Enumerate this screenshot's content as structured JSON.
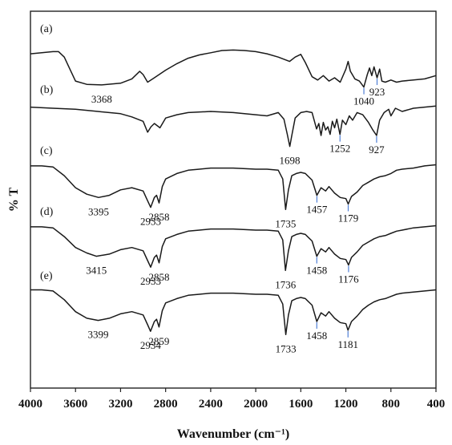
{
  "chart_data": {
    "type": "line",
    "xlabel": "Wavenumber (cm⁻¹)",
    "ylabel": "% T",
    "xlim": [
      4000,
      400
    ],
    "x_reversed": true,
    "xticks": [
      "4000",
      "3600",
      "3200",
      "2800",
      "2400",
      "2000",
      "1600",
      "1200",
      "800",
      "400"
    ],
    "grid": false,
    "line_color": "#1a1a1a",
    "marker_color": "#4f7fd6",
    "series": [
      {
        "label": "(a)",
        "points": [
          [
            4000,
            0.34
          ],
          [
            3900,
            0.32
          ],
          [
            3800,
            0.3
          ],
          [
            3750,
            0.3
          ],
          [
            3700,
            0.4
          ],
          [
            3650,
            0.62
          ],
          [
            3600,
            0.84
          ],
          [
            3500,
            0.9
          ],
          [
            3368,
            0.91
          ],
          [
            3200,
            0.88
          ],
          [
            3100,
            0.8
          ],
          [
            3030,
            0.66
          ],
          [
            3000,
            0.72
          ],
          [
            2960,
            0.86
          ],
          [
            2900,
            0.78
          ],
          [
            2800,
            0.64
          ],
          [
            2700,
            0.52
          ],
          [
            2600,
            0.42
          ],
          [
            2500,
            0.36
          ],
          [
            2400,
            0.32
          ],
          [
            2300,
            0.28
          ],
          [
            2200,
            0.27
          ],
          [
            2100,
            0.28
          ],
          [
            2000,
            0.3
          ],
          [
            1900,
            0.34
          ],
          [
            1800,
            0.4
          ],
          [
            1700,
            0.48
          ],
          [
            1650,
            0.4
          ],
          [
            1600,
            0.35
          ],
          [
            1560,
            0.5
          ],
          [
            1500,
            0.76
          ],
          [
            1450,
            0.82
          ],
          [
            1400,
            0.74
          ],
          [
            1350,
            0.84
          ],
          [
            1300,
            0.78
          ],
          [
            1250,
            0.86
          ],
          [
            1200,
            0.62
          ],
          [
            1180,
            0.48
          ],
          [
            1160,
            0.66
          ],
          [
            1120,
            0.8
          ],
          [
            1080,
            0.84
          ],
          [
            1040,
            0.95
          ],
          [
            1010,
            0.72
          ],
          [
            990,
            0.6
          ],
          [
            970,
            0.74
          ],
          [
            950,
            0.58
          ],
          [
            923,
            0.78
          ],
          [
            900,
            0.62
          ],
          [
            880,
            0.84
          ],
          [
            850,
            0.86
          ],
          [
            800,
            0.82
          ],
          [
            750,
            0.86
          ],
          [
            700,
            0.84
          ],
          [
            600,
            0.82
          ],
          [
            500,
            0.8
          ],
          [
            400,
            0.74
          ]
        ],
        "peaks": [
          {
            "x": 3368,
            "label": "3368",
            "marker": false
          },
          {
            "x": 1040,
            "label": "1040",
            "marker": true
          },
          {
            "x": 923,
            "label": "923",
            "marker": true
          }
        ]
      },
      {
        "label": "(b)",
        "points": [
          [
            4000,
            0.2
          ],
          [
            3800,
            0.22
          ],
          [
            3600,
            0.24
          ],
          [
            3400,
            0.28
          ],
          [
            3200,
            0.32
          ],
          [
            3100,
            0.38
          ],
          [
            3000,
            0.46
          ],
          [
            2960,
            0.66
          ],
          [
            2930,
            0.56
          ],
          [
            2900,
            0.5
          ],
          [
            2850,
            0.58
          ],
          [
            2800,
            0.4
          ],
          [
            2700,
            0.34
          ],
          [
            2600,
            0.3
          ],
          [
            2400,
            0.28
          ],
          [
            2200,
            0.3
          ],
          [
            2000,
            0.34
          ],
          [
            1900,
            0.36
          ],
          [
            1800,
            0.3
          ],
          [
            1750,
            0.42
          ],
          [
            1720,
            0.7
          ],
          [
            1698,
            0.92
          ],
          [
            1680,
            0.72
          ],
          [
            1650,
            0.4
          ],
          [
            1600,
            0.3
          ],
          [
            1550,
            0.28
          ],
          [
            1500,
            0.3
          ],
          [
            1460,
            0.6
          ],
          [
            1440,
            0.5
          ],
          [
            1420,
            0.72
          ],
          [
            1400,
            0.48
          ],
          [
            1380,
            0.62
          ],
          [
            1360,
            0.56
          ],
          [
            1340,
            0.7
          ],
          [
            1320,
            0.46
          ],
          [
            1300,
            0.58
          ],
          [
            1280,
            0.42
          ],
          [
            1252,
            0.7
          ],
          [
            1230,
            0.44
          ],
          [
            1200,
            0.52
          ],
          [
            1170,
            0.36
          ],
          [
            1140,
            0.44
          ],
          [
            1100,
            0.3
          ],
          [
            1050,
            0.34
          ],
          [
            1000,
            0.48
          ],
          [
            960,
            0.62
          ],
          [
            927,
            0.72
          ],
          [
            900,
            0.44
          ],
          [
            860,
            0.3
          ],
          [
            820,
            0.24
          ],
          [
            800,
            0.36
          ],
          [
            760,
            0.22
          ],
          [
            700,
            0.28
          ],
          [
            600,
            0.22
          ],
          [
            500,
            0.2
          ],
          [
            400,
            0.18
          ]
        ],
        "peaks": [
          {
            "x": 1698,
            "label": "1698",
            "marker": false
          },
          {
            "x": 1252,
            "label": "1252",
            "marker": true
          },
          {
            "x": 927,
            "label": "927",
            "marker": true
          }
        ]
      },
      {
        "label": "(c)",
        "points": [
          [
            4000,
            0.16
          ],
          [
            3900,
            0.16
          ],
          [
            3800,
            0.18
          ],
          [
            3700,
            0.34
          ],
          [
            3600,
            0.56
          ],
          [
            3500,
            0.68
          ],
          [
            3395,
            0.74
          ],
          [
            3300,
            0.7
          ],
          [
            3200,
            0.6
          ],
          [
            3100,
            0.56
          ],
          [
            3000,
            0.62
          ],
          [
            2960,
            0.8
          ],
          [
            2933,
            0.92
          ],
          [
            2900,
            0.74
          ],
          [
            2880,
            0.7
          ],
          [
            2858,
            0.84
          ],
          [
            2830,
            0.54
          ],
          [
            2800,
            0.4
          ],
          [
            2700,
            0.3
          ],
          [
            2600,
            0.24
          ],
          [
            2500,
            0.22
          ],
          [
            2400,
            0.2
          ],
          [
            2200,
            0.2
          ],
          [
            2000,
            0.22
          ],
          [
            1900,
            0.22
          ],
          [
            1800,
            0.24
          ],
          [
            1760,
            0.4
          ],
          [
            1735,
            0.96
          ],
          [
            1710,
            0.6
          ],
          [
            1680,
            0.34
          ],
          [
            1640,
            0.3
          ],
          [
            1600,
            0.28
          ],
          [
            1560,
            0.3
          ],
          [
            1500,
            0.42
          ],
          [
            1457,
            0.7
          ],
          [
            1420,
            0.56
          ],
          [
            1380,
            0.62
          ],
          [
            1350,
            0.54
          ],
          [
            1300,
            0.66
          ],
          [
            1250,
            0.74
          ],
          [
            1200,
            0.76
          ],
          [
            1179,
            0.86
          ],
          [
            1150,
            0.72
          ],
          [
            1100,
            0.64
          ],
          [
            1050,
            0.52
          ],
          [
            1000,
            0.46
          ],
          [
            950,
            0.4
          ],
          [
            900,
            0.36
          ],
          [
            850,
            0.34
          ],
          [
            800,
            0.3
          ],
          [
            750,
            0.24
          ],
          [
            700,
            0.22
          ],
          [
            600,
            0.2
          ],
          [
            500,
            0.16
          ],
          [
            400,
            0.14
          ]
        ],
        "peaks": [
          {
            "x": 3395,
            "label": "3395",
            "marker": false
          },
          {
            "x": 2933,
            "label": "2933",
            "marker": false
          },
          {
            "x": 2858,
            "label": "2858",
            "marker": false
          },
          {
            "x": 1735,
            "label": "1735",
            "marker": false
          },
          {
            "x": 1457,
            "label": "1457",
            "marker": true
          },
          {
            "x": 1179,
            "label": "1179",
            "marker": true
          }
        ]
      },
      {
        "label": "(d)",
        "points": [
          [
            4000,
            0.16
          ],
          [
            3900,
            0.16
          ],
          [
            3800,
            0.18
          ],
          [
            3700,
            0.34
          ],
          [
            3600,
            0.54
          ],
          [
            3500,
            0.64
          ],
          [
            3415,
            0.7
          ],
          [
            3300,
            0.66
          ],
          [
            3200,
            0.58
          ],
          [
            3100,
            0.54
          ],
          [
            3000,
            0.6
          ],
          [
            2960,
            0.78
          ],
          [
            2933,
            0.9
          ],
          [
            2900,
            0.72
          ],
          [
            2880,
            0.68
          ],
          [
            2858,
            0.82
          ],
          [
            2830,
            0.52
          ],
          [
            2800,
            0.38
          ],
          [
            2700,
            0.3
          ],
          [
            2600,
            0.24
          ],
          [
            2500,
            0.22
          ],
          [
            2400,
            0.2
          ],
          [
            2200,
            0.2
          ],
          [
            2000,
            0.22
          ],
          [
            1900,
            0.22
          ],
          [
            1800,
            0.24
          ],
          [
            1760,
            0.4
          ],
          [
            1736,
            0.96
          ],
          [
            1710,
            0.6
          ],
          [
            1680,
            0.34
          ],
          [
            1640,
            0.3
          ],
          [
            1600,
            0.28
          ],
          [
            1560,
            0.3
          ],
          [
            1500,
            0.42
          ],
          [
            1458,
            0.7
          ],
          [
            1420,
            0.56
          ],
          [
            1380,
            0.62
          ],
          [
            1350,
            0.54
          ],
          [
            1300,
            0.66
          ],
          [
            1250,
            0.74
          ],
          [
            1200,
            0.76
          ],
          [
            1176,
            0.86
          ],
          [
            1150,
            0.72
          ],
          [
            1100,
            0.62
          ],
          [
            1050,
            0.5
          ],
          [
            1000,
            0.44
          ],
          [
            950,
            0.38
          ],
          [
            900,
            0.34
          ],
          [
            850,
            0.32
          ],
          [
            800,
            0.28
          ],
          [
            750,
            0.24
          ],
          [
            700,
            0.22
          ],
          [
            600,
            0.18
          ],
          [
            500,
            0.16
          ],
          [
            400,
            0.14
          ]
        ],
        "peaks": [
          {
            "x": 3415,
            "label": "3415",
            "marker": false
          },
          {
            "x": 2933,
            "label": "2933",
            "marker": false
          },
          {
            "x": 2858,
            "label": "2858",
            "marker": false
          },
          {
            "x": 1736,
            "label": "1736",
            "marker": false
          },
          {
            "x": 1458,
            "label": "1458",
            "marker": true
          },
          {
            "x": 1176,
            "label": "1176",
            "marker": true
          }
        ]
      },
      {
        "label": "(e)",
        "points": [
          [
            4000,
            0.14
          ],
          [
            3900,
            0.14
          ],
          [
            3800,
            0.16
          ],
          [
            3700,
            0.32
          ],
          [
            3600,
            0.54
          ],
          [
            3500,
            0.66
          ],
          [
            3399,
            0.7
          ],
          [
            3300,
            0.66
          ],
          [
            3200,
            0.58
          ],
          [
            3100,
            0.54
          ],
          [
            3000,
            0.6
          ],
          [
            2960,
            0.78
          ],
          [
            2934,
            0.9
          ],
          [
            2900,
            0.72
          ],
          [
            2880,
            0.68
          ],
          [
            2859,
            0.82
          ],
          [
            2830,
            0.52
          ],
          [
            2800,
            0.38
          ],
          [
            2700,
            0.3
          ],
          [
            2600,
            0.24
          ],
          [
            2500,
            0.22
          ],
          [
            2400,
            0.2
          ],
          [
            2200,
            0.2
          ],
          [
            2000,
            0.22
          ],
          [
            1900,
            0.22
          ],
          [
            1800,
            0.24
          ],
          [
            1760,
            0.4
          ],
          [
            1733,
            0.96
          ],
          [
            1710,
            0.6
          ],
          [
            1680,
            0.34
          ],
          [
            1640,
            0.3
          ],
          [
            1600,
            0.28
          ],
          [
            1560,
            0.3
          ],
          [
            1500,
            0.42
          ],
          [
            1458,
            0.72
          ],
          [
            1420,
            0.56
          ],
          [
            1380,
            0.62
          ],
          [
            1350,
            0.54
          ],
          [
            1300,
            0.66
          ],
          [
            1250,
            0.74
          ],
          [
            1200,
            0.76
          ],
          [
            1181,
            0.88
          ],
          [
            1150,
            0.72
          ],
          [
            1100,
            0.62
          ],
          [
            1050,
            0.5
          ],
          [
            1000,
            0.42
          ],
          [
            950,
            0.36
          ],
          [
            900,
            0.32
          ],
          [
            850,
            0.3
          ],
          [
            800,
            0.26
          ],
          [
            750,
            0.22
          ],
          [
            700,
            0.2
          ],
          [
            600,
            0.18
          ],
          [
            500,
            0.16
          ],
          [
            400,
            0.14
          ]
        ],
        "peaks": [
          {
            "x": 3399,
            "label": "3399",
            "marker": false
          },
          {
            "x": 2934,
            "label": "2934",
            "marker": false
          },
          {
            "x": 2859,
            "label": "2859",
            "marker": false
          },
          {
            "x": 1733,
            "label": "1733",
            "marker": false
          },
          {
            "x": 1458,
            "label": "1458",
            "marker": true
          },
          {
            "x": 1181,
            "label": "1181",
            "marker": true
          }
        ]
      }
    ]
  }
}
